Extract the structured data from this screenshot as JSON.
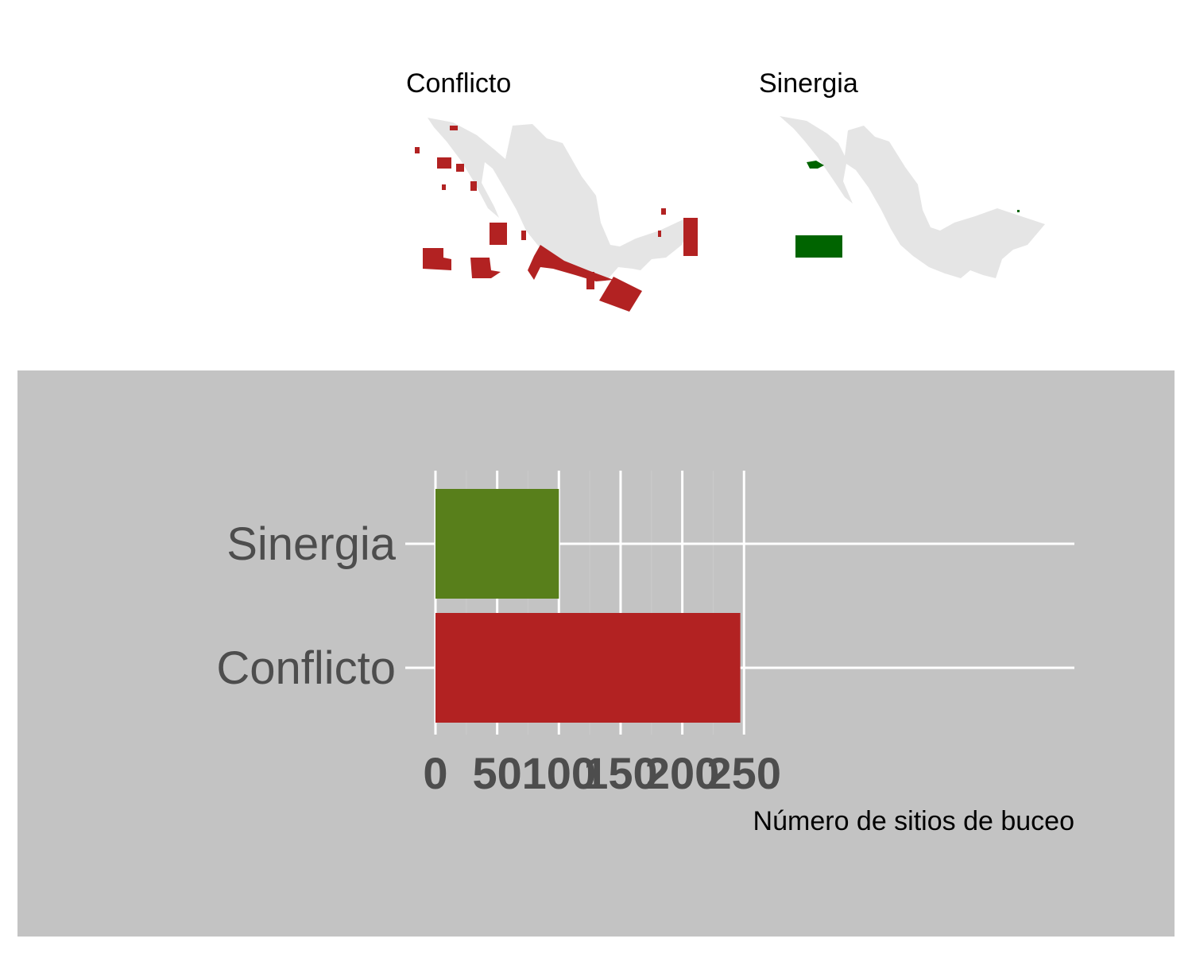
{
  "maps": [
    {
      "title": "Conflicto",
      "color": "#b22222",
      "land_color": "#e5e5e5"
    },
    {
      "title": "Sinergia",
      "color": "#006400",
      "land_color": "#e5e5e5"
    }
  ],
  "chart_data": {
    "type": "bar",
    "orientation": "horizontal",
    "categories": [
      "Sinergia",
      "Conflicto"
    ],
    "values": [
      100,
      247
    ],
    "colors": [
      "#587f1b",
      "#b22222"
    ],
    "xlabel": "Número de sitios de buceo",
    "ylabel": "",
    "xlim": [
      0,
      260
    ],
    "xticks": [
      0,
      50,
      100,
      150,
      200,
      250
    ],
    "grid": true,
    "background": "#c3c3c3"
  }
}
